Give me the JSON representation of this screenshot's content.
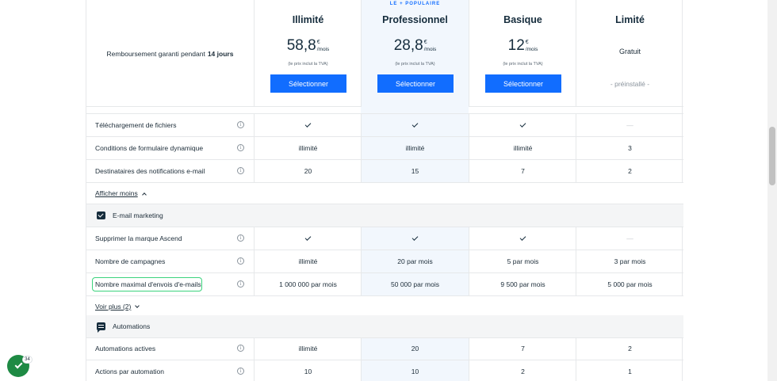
{
  "header": {
    "guarantee_text": "Remboursement garanti pendant",
    "guarantee_bold": "14 jours",
    "plans": [
      {
        "name": "Illimité",
        "price": "58,8",
        "currency": "€",
        "period": "/mois",
        "tva": "(le prix inclut la TVA)",
        "button": "Sélectionner"
      },
      {
        "name": "Professionnel",
        "badge": "LE + POPULAIRE",
        "price": "28,8",
        "currency": "€",
        "period": "/mois",
        "tva": "(le prix inclut la TVA)",
        "button": "Sélectionner"
      },
      {
        "name": "Basique",
        "price": "12",
        "currency": "€",
        "period": "/mois",
        "tva": "(le prix inclut la TVA)",
        "button": "Sélectionner"
      },
      {
        "name": "Limité",
        "price_text": "Gratuit",
        "status": "- préinstallé -"
      }
    ]
  },
  "forms_rows": [
    {
      "label": "Téléchargement de fichiers",
      "values": [
        "✓",
        "✓",
        "✓",
        "—"
      ]
    },
    {
      "label": "Conditions de formulaire dynamique",
      "values": [
        "illimité",
        "illimité",
        "illimité",
        "3"
      ]
    },
    {
      "label": "Destinataires des notifications e-mail",
      "values": [
        "20",
        "15",
        "7",
        "2"
      ]
    }
  ],
  "show_less": "Afficher moins",
  "email_section": {
    "title": "E-mail marketing",
    "icon": "mail-icon",
    "rows": [
      {
        "label": "Supprimer la marque Ascend",
        "values": [
          "✓",
          "✓",
          "✓",
          "—"
        ]
      },
      {
        "label": "Nombre de campagnes",
        "values": [
          "illimité",
          "20 par mois",
          "5 par mois",
          "3 par mois"
        ]
      },
      {
        "label": "Nombre maximal d'envois d'e-mails",
        "values": [
          "1 000 000 par mois",
          "50 000 par mois",
          "9 500 par mois",
          "5 000 par mois"
        ]
      }
    ],
    "show_more": "Voir plus (2)"
  },
  "automation_section": {
    "title": "Automations",
    "icon": "chat-icon",
    "rows": [
      {
        "label": "Automations actives",
        "values": [
          "illimité",
          "20",
          "7",
          "2"
        ]
      },
      {
        "label": "Actions par automation",
        "values": [
          "10",
          "10",
          "2",
          "1"
        ]
      }
    ]
  },
  "fab": {
    "badge_count": "34"
  },
  "colors": {
    "primary": "#116dff",
    "highlight": "#3bd37d",
    "popular_bg": "#f2f7fd",
    "fab": "#1e8a44"
  }
}
